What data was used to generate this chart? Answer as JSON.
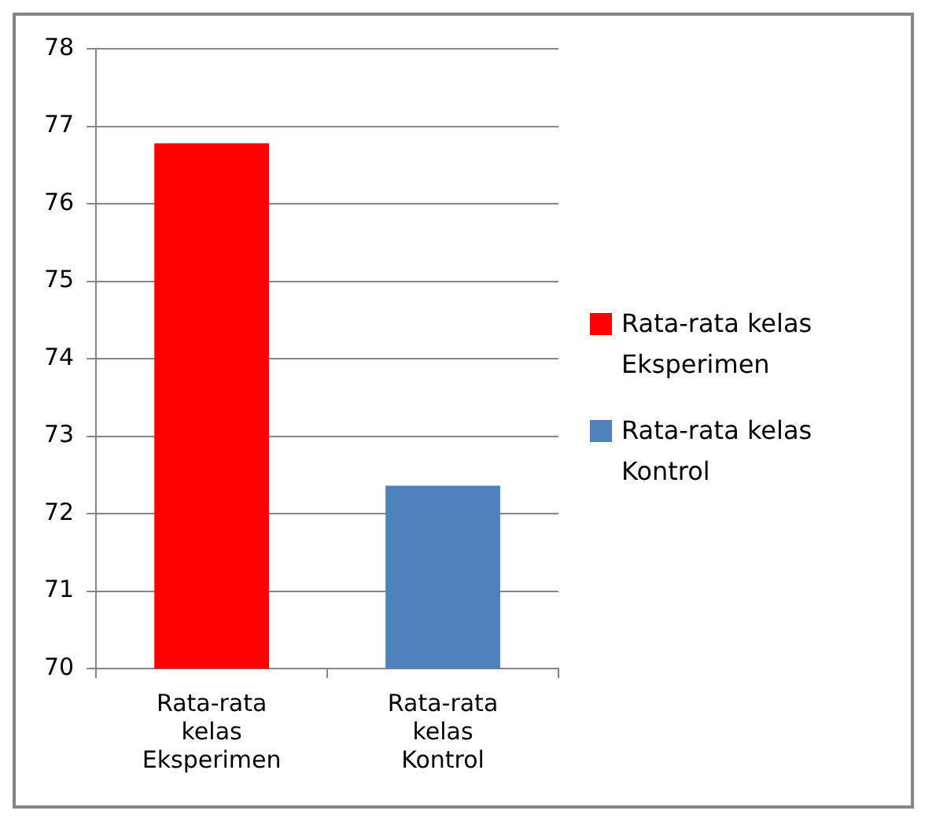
{
  "chart_data": {
    "type": "bar",
    "categories": [
      "Rata-rata kelas Eksperimen",
      "Rata-rata kelas Kontrol"
    ],
    "series": [
      {
        "name": "Rata-rata kelas Eksperimen",
        "color": "#ff0000",
        "values": [
          76.78,
          null
        ]
      },
      {
        "name": "Rata-rata kelas Kontrol",
        "color": "#4f81bd",
        "values": [
          null,
          72.36
        ]
      }
    ],
    "ylim": [
      70,
      78
    ],
    "yticks": [
      70,
      71,
      72,
      73,
      74,
      75,
      76,
      77,
      78
    ],
    "grid": "y",
    "legend": "right"
  }
}
